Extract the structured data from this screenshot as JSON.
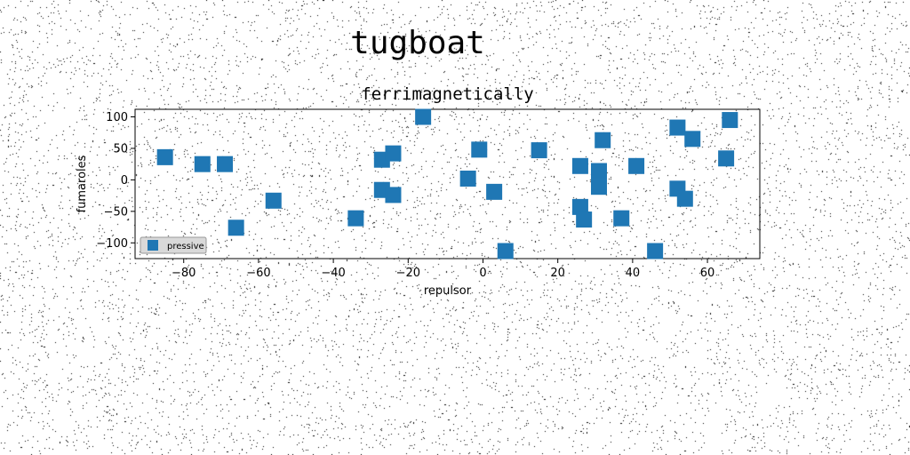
{
  "figure": {
    "suptitle": "tugboat"
  },
  "colors": {
    "marker": "#1f77b4",
    "legend_bg": "#d9d9d9",
    "noise": "#000000"
  },
  "chart_data": {
    "type": "scatter",
    "title": "ferrimagnetically",
    "xlabel": "repulsor",
    "ylabel": "fumaroles",
    "xlim": [
      -93,
      74
    ],
    "ylim": [
      -125,
      112
    ],
    "xticks": [
      -80,
      -60,
      -40,
      -20,
      0,
      20,
      40,
      60
    ],
    "yticks": [
      100,
      50,
      0,
      -50,
      -100
    ],
    "xtick_labels": [
      "−80",
      "−60",
      "−40",
      "−20",
      "0",
      "20",
      "40",
      "60"
    ],
    "ytick_labels": [
      "100",
      "50",
      "0",
      "−50",
      "−100"
    ],
    "grid": false,
    "legend": {
      "position": "lower-left"
    },
    "series": [
      {
        "name": "pressive",
        "marker": "square",
        "points": [
          [
            -85,
            36
          ],
          [
            -75,
            25
          ],
          [
            -69,
            25
          ],
          [
            -66,
            -76
          ],
          [
            -56,
            -33
          ],
          [
            -34,
            -61
          ],
          [
            -27,
            32
          ],
          [
            -27,
            -16
          ],
          [
            -24,
            42
          ],
          [
            -24,
            -24
          ],
          [
            -16,
            100
          ],
          [
            -4,
            2
          ],
          [
            -1,
            48
          ],
          [
            3,
            -19
          ],
          [
            6,
            -113
          ],
          [
            15,
            47
          ],
          [
            26,
            -43
          ],
          [
            26,
            22
          ],
          [
            27,
            -63
          ],
          [
            31,
            14
          ],
          [
            31,
            -11
          ],
          [
            32,
            63
          ],
          [
            37,
            -61
          ],
          [
            41,
            22
          ],
          [
            46,
            -113
          ],
          [
            52,
            83
          ],
          [
            52,
            -14
          ],
          [
            54,
            -30
          ],
          [
            56,
            65
          ],
          [
            65,
            34
          ],
          [
            66,
            95
          ]
        ]
      }
    ]
  }
}
